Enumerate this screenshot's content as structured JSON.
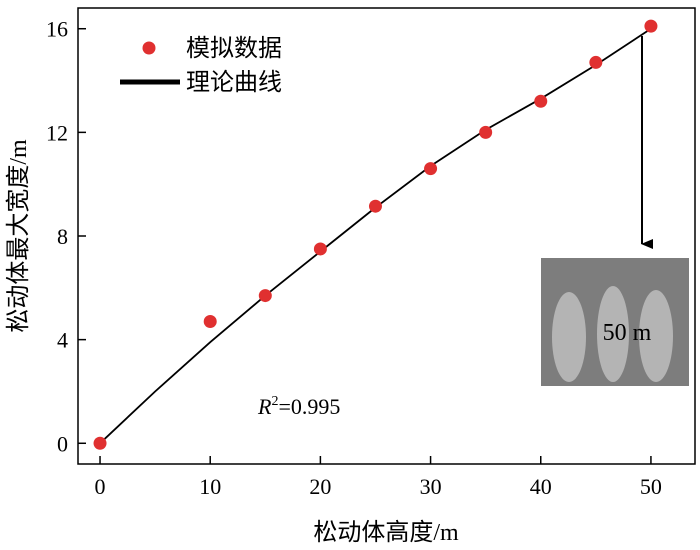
{
  "chart_data": {
    "type": "scatter",
    "xlabel": "松动体高度/m",
    "ylabel": "松动体最大宽度/m",
    "xlim": [
      -2,
      54
    ],
    "ylim": [
      -0.8,
      16.8
    ],
    "x_ticks": [
      0,
      10,
      20,
      30,
      40,
      50
    ],
    "y_ticks": [
      0,
      4,
      8,
      12,
      16
    ],
    "grid": false,
    "legend_position": "top-left",
    "series": [
      {
        "name": "模拟数据",
        "kind": "scatter",
        "color": "#e03030",
        "points": [
          {
            "x": 0,
            "y": 0.0
          },
          {
            "x": 10,
            "y": 4.7
          },
          {
            "x": 15,
            "y": 5.7
          },
          {
            "x": 20,
            "y": 7.5
          },
          {
            "x": 25,
            "y": 9.15
          },
          {
            "x": 30,
            "y": 10.6
          },
          {
            "x": 35,
            "y": 12.0
          },
          {
            "x": 40,
            "y": 13.2
          },
          {
            "x": 45,
            "y": 14.7
          },
          {
            "x": 50,
            "y": 16.1
          }
        ]
      },
      {
        "name": "理论曲线",
        "kind": "line",
        "color": "#000000",
        "points": [
          {
            "x": 0,
            "y": 0.0
          },
          {
            "x": 5,
            "y": 2.0
          },
          {
            "x": 10,
            "y": 3.9
          },
          {
            "x": 15,
            "y": 5.7
          },
          {
            "x": 20,
            "y": 7.4
          },
          {
            "x": 25,
            "y": 9.1
          },
          {
            "x": 30,
            "y": 10.7
          },
          {
            "x": 35,
            "y": 12.1
          },
          {
            "x": 40,
            "y": 13.3
          },
          {
            "x": 45,
            "y": 14.6
          },
          {
            "x": 50,
            "y": 16.0
          }
        ]
      }
    ],
    "annotation_r2": {
      "prefix": "R",
      "sup": "2",
      "value": "=0.995"
    },
    "inset": {
      "label": "50 m",
      "background": "#7d7d7d",
      "shape_color": "#b4b4b4"
    }
  }
}
